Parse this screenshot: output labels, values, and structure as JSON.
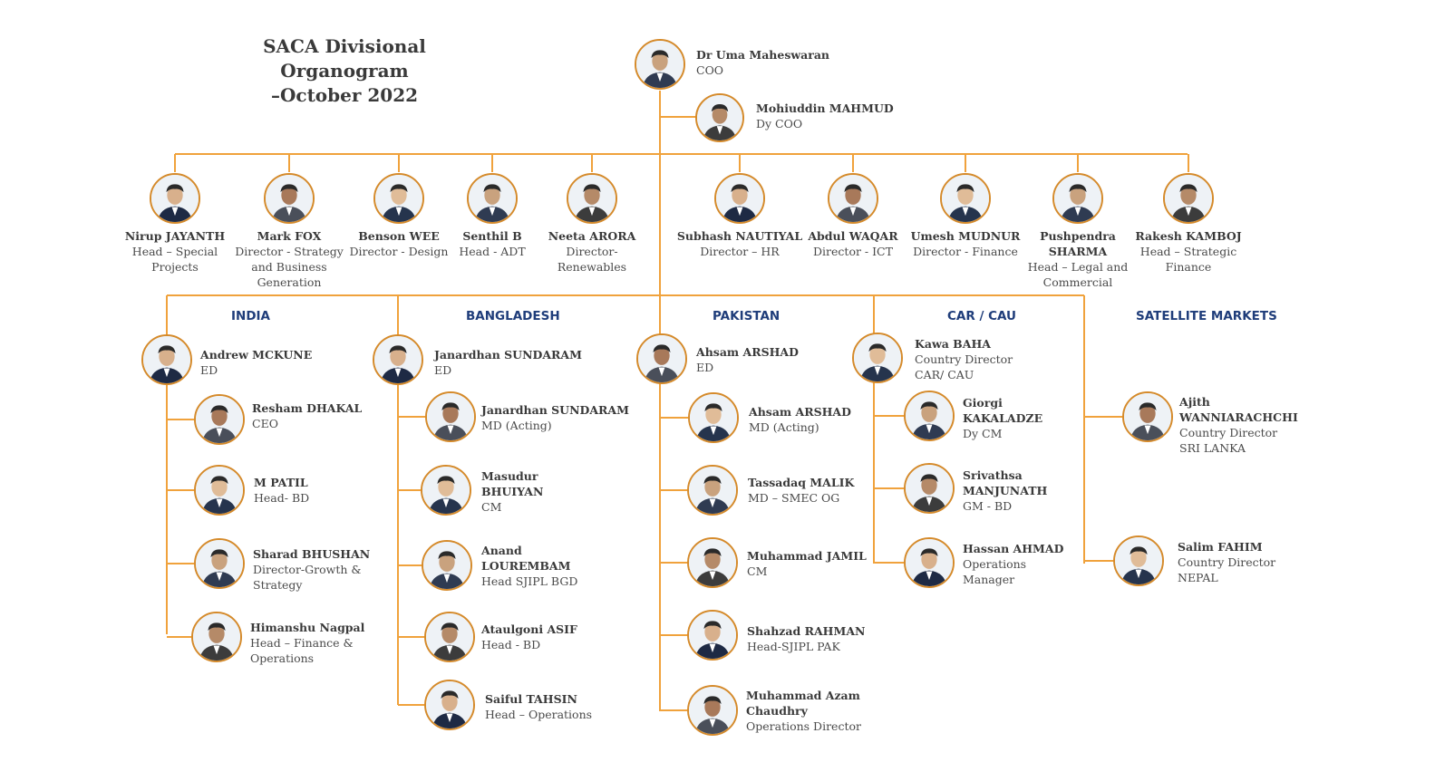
{
  "title": {
    "line1": "SACA Divisional Organogram",
    "line2": "–October 2022"
  },
  "colors": {
    "line": "#f0a23c",
    "ring": "#d58a2a",
    "section": "#1f3d7a"
  },
  "top": [
    {
      "name": "Dr Uma Maheswaran",
      "role": [
        "COO"
      ]
    },
    {
      "name": "Mohiuddin MAHMUD",
      "role": [
        "Dy COO"
      ]
    }
  ],
  "heads": [
    {
      "name": [
        "Nirup JAYANTH"
      ],
      "role": [
        "Head – Special",
        "Projects"
      ]
    },
    {
      "name": [
        "Mark FOX"
      ],
      "role": [
        "Director - Strategy",
        "and Business",
        "Generation"
      ]
    },
    {
      "name": [
        "Benson WEE"
      ],
      "role": [
        "Director - Design"
      ]
    },
    {
      "name": [
        "Senthil B"
      ],
      "role": [
        "Head - ADT"
      ]
    },
    {
      "name": [
        "Neeta ARORA"
      ],
      "role": [
        "Director-",
        "Renewables"
      ]
    },
    {
      "name": [
        "Subhash NAUTIYAL"
      ],
      "role": [
        "Director – HR"
      ]
    },
    {
      "name": [
        "Abdul WAQAR"
      ],
      "role": [
        "Director - ICT"
      ]
    },
    {
      "name": [
        "Umesh MUDNUR"
      ],
      "role": [
        "Director - Finance"
      ]
    },
    {
      "name": [
        "Pushpendra",
        "SHARMA"
      ],
      "role": [
        "Head – Legal and",
        "Commercial"
      ]
    },
    {
      "name": [
        "Rakesh KAMBOJ"
      ],
      "role": [
        "Head – Strategic",
        "Finance"
      ]
    }
  ],
  "sections": [
    {
      "label": "INDIA",
      "lead": {
        "name": [
          "Andrew MCKUNE"
        ],
        "role": [
          "ED"
        ]
      },
      "members": [
        {
          "name": [
            "Resham DHAKAL"
          ],
          "role": [
            "CEO"
          ]
        },
        {
          "name": [
            "M PATIL"
          ],
          "role": [
            "Head- BD"
          ]
        },
        {
          "name": [
            "Sharad BHUSHAN"
          ],
          "role": [
            "Director-Growth &",
            "Strategy"
          ]
        },
        {
          "name": [
            "Himanshu Nagpal"
          ],
          "role": [
            "Head – Finance &",
            "Operations"
          ]
        }
      ]
    },
    {
      "label": "BANGLADESH",
      "lead": {
        "name": [
          "Janardhan SUNDARAM"
        ],
        "role": [
          "ED"
        ]
      },
      "members": [
        {
          "name": [
            "Janardhan SUNDARAM"
          ],
          "role": [
            "MD (Acting)"
          ]
        },
        {
          "name": [
            "Masudur",
            "BHUIYAN"
          ],
          "role": [
            "CM"
          ]
        },
        {
          "name": [
            "Anand",
            "LOUREMBAM"
          ],
          "role": [
            "Head SJIPL BGD"
          ]
        },
        {
          "name": [
            "Ataulgoni ASIF"
          ],
          "role": [
            "Head - BD"
          ]
        },
        {
          "name": [
            "Saiful TAHSIN"
          ],
          "role": [
            "Head – Operations"
          ]
        }
      ]
    },
    {
      "label": "PAKISTAN",
      "lead": {
        "name": [
          "Ahsam ARSHAD"
        ],
        "role": [
          "ED"
        ]
      },
      "members": [
        {
          "name": [
            "Ahsam ARSHAD"
          ],
          "role": [
            "MD (Acting)"
          ]
        },
        {
          "name": [
            "Tassadaq MALIK"
          ],
          "role": [
            "MD – SMEC OG"
          ]
        },
        {
          "name": [
            "Muhammad JAMIL"
          ],
          "role": [
            "CM"
          ]
        },
        {
          "name": [
            "Shahzad RAHMAN"
          ],
          "role": [
            "Head-SJIPL PAK"
          ]
        },
        {
          "name": [
            "Muhammad Azam",
            "Chaudhry"
          ],
          "role": [
            "Operations Director"
          ]
        }
      ]
    },
    {
      "label": "CAR / CAU",
      "lead": {
        "name": [
          "Kawa BAHA"
        ],
        "role": [
          "Country Director",
          "CAR/ CAU"
        ]
      },
      "members": [
        {
          "name": [
            "Giorgi",
            "KAKALADZE"
          ],
          "role": [
            "Dy CM"
          ]
        },
        {
          "name": [
            "Srivathsa",
            "MANJUNATH"
          ],
          "role": [
            "GM - BD"
          ]
        },
        {
          "name": [
            "Hassan AHMAD"
          ],
          "role": [
            "Operations",
            "Manager"
          ]
        }
      ]
    },
    {
      "label": "SATELLITE MARKETS",
      "lead": null,
      "members": [
        {
          "name": [
            "Ajith",
            "WANNIARACHCHI"
          ],
          "role": [
            "Country Director",
            "SRI LANKA"
          ]
        },
        {
          "name": [
            "Salim FAHIM"
          ],
          "role": [
            "Country Director",
            "NEPAL"
          ]
        }
      ]
    }
  ]
}
